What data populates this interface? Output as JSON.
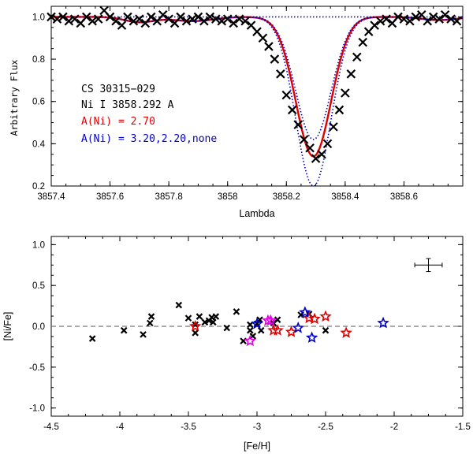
{
  "chart_data": [
    {
      "type": "line",
      "panel": "top",
      "xlabel": "Lambda",
      "ylabel": "Arbitrary Flux",
      "xlim": [
        3857.4,
        3858.8
      ],
      "ylim": [
        0.2,
        1.05
      ],
      "xticks": [
        3857.4,
        3857.6,
        3857.8,
        3858.0,
        3858.2,
        3858.4,
        3858.6
      ],
      "xtick_labels": [
        "3857.4",
        "3857.6",
        "3857.8",
        "3858",
        "3858.2",
        "3858.4",
        "3858.6"
      ],
      "yticks": [
        0.2,
        0.4,
        0.6,
        0.8,
        1.0
      ],
      "ytick_labels": [
        "0.2",
        "0.4",
        "0.6",
        "0.8",
        "1.0"
      ],
      "annotations": [
        {
          "text": "CS 30315−029",
          "color": "#000000"
        },
        {
          "text": "Ni I 3858.292 A",
          "color": "#000000"
        },
        {
          "text": "A(Ni) = 2.70",
          "color": "#e00000"
        },
        {
          "text": "A(Ni) = 3.20,2.20,none",
          "color": "#0000cc"
        }
      ],
      "line_model": {
        "center": 3858.292,
        "depth_best": 0.66,
        "sigma": 0.06
      },
      "series": [
        {
          "name": "A(Ni) = 2.70",
          "color": "#e00000",
          "style": "solid",
          "depth": 0.66
        },
        {
          "name": "A(Ni) = 3.20",
          "color": "#0000cc",
          "style": "dotted",
          "depth": 0.8
        },
        {
          "name": "A(Ni) = 2.20",
          "color": "#0000cc",
          "style": "dotted",
          "depth": 0.58
        },
        {
          "name": "none",
          "color": "#0000cc",
          "style": "dotted",
          "depth": 0.0
        }
      ],
      "observed": {
        "x": [
          3857.4,
          3857.42,
          3857.44,
          3857.46,
          3857.48,
          3857.5,
          3857.52,
          3857.54,
          3857.56,
          3857.58,
          3857.6,
          3857.62,
          3857.64,
          3857.66,
          3857.68,
          3857.7,
          3857.72,
          3857.74,
          3857.76,
          3857.78,
          3857.8,
          3857.82,
          3857.84,
          3857.86,
          3857.88,
          3857.9,
          3857.92,
          3857.94,
          3857.96,
          3857.98,
          3858.0,
          3858.02,
          3858.04,
          3858.06,
          3858.08,
          3858.1,
          3858.12,
          3858.14,
          3858.16,
          3858.18,
          3858.2,
          3858.22,
          3858.24,
          3858.26,
          3858.28,
          3858.3,
          3858.32,
          3858.34,
          3858.36,
          3858.38,
          3858.4,
          3858.42,
          3858.44,
          3858.46,
          3858.48,
          3858.5,
          3858.52,
          3858.54,
          3858.56,
          3858.58,
          3858.6,
          3858.62,
          3858.64,
          3858.66,
          3858.68,
          3858.7,
          3858.72,
          3858.74,
          3858.76,
          3858.78
        ],
        "y": [
          1.0,
          0.99,
          1.0,
          0.98,
          0.99,
          0.97,
          1.0,
          0.98,
          0.99,
          1.03,
          1.0,
          0.98,
          0.96,
          1.0,
          0.98,
          0.99,
          0.97,
          1.0,
          0.98,
          1.01,
          0.99,
          0.97,
          1.0,
          0.98,
          0.99,
          1.0,
          0.98,
          1.0,
          0.99,
          0.98,
          0.99,
          0.97,
          0.99,
          0.98,
          0.96,
          0.93,
          0.9,
          0.86,
          0.8,
          0.73,
          0.63,
          0.56,
          0.49,
          0.42,
          0.38,
          0.33,
          0.35,
          0.4,
          0.48,
          0.56,
          0.64,
          0.73,
          0.81,
          0.88,
          0.93,
          0.96,
          0.98,
          0.99,
          0.97,
          1.0,
          0.99,
          0.98,
          1.0,
          1.01,
          0.98,
          1.0,
          0.99,
          1.01,
          0.99,
          0.98
        ]
      }
    },
    {
      "type": "scatter",
      "panel": "bottom",
      "xlabel": "[Fe/H]",
      "ylabel": "[Ni/Fe]",
      "xlim": [
        -4.5,
        -1.5
      ],
      "ylim": [
        -1.1,
        1.1
      ],
      "xticks": [
        -4.5,
        -4,
        -3.5,
        -3,
        -2.5,
        -2,
        -1.5
      ],
      "xtick_labels": [
        "-4.5",
        "-4",
        "-3.5",
        "-3",
        "-2.5",
        "-2",
        "-1.5"
      ],
      "yticks": [
        -1.0,
        -0.5,
        0.0,
        0.5,
        1.0
      ],
      "ytick_labels": [
        "-1.0",
        "-0.5",
        "0.0",
        "0.5",
        "1.0"
      ],
      "reference_line": 0.0,
      "error_bar": {
        "x": -1.75,
        "y": 0.75,
        "xerr": 0.1,
        "yerr": 0.08
      },
      "series": [
        {
          "name": "literature",
          "marker": "x",
          "color": "#000000",
          "x": [
            -4.2,
            -3.97,
            -3.83,
            -3.78,
            -3.77,
            -3.57,
            -3.5,
            -3.45,
            -3.45,
            -3.42,
            -3.38,
            -3.35,
            -3.33,
            -3.32,
            -3.3,
            -3.22,
            -3.15,
            -3.1,
            -3.05,
            -3.05,
            -3.03,
            -3.0,
            -2.98,
            -2.97,
            -2.88,
            -2.85,
            -2.68,
            -2.62,
            -2.5
          ],
          "y": [
            -0.15,
            -0.05,
            -0.1,
            0.04,
            0.12,
            0.26,
            0.1,
            0.02,
            -0.08,
            0.12,
            0.05,
            0.07,
            0.11,
            0.05,
            0.12,
            -0.02,
            0.18,
            -0.18,
            -0.05,
            0.02,
            -0.12,
            0.03,
            0.08,
            -0.05,
            0.04,
            0.08,
            0.14,
            0.15,
            -0.05
          ]
        },
        {
          "name": "red stars",
          "marker": "star",
          "color": "#e00000",
          "x": [
            -3.45,
            -2.88,
            -2.85,
            -2.75,
            -2.62,
            -2.58,
            -2.5,
            -2.35
          ],
          "y": [
            0.0,
            -0.05,
            -0.05,
            -0.07,
            0.1,
            0.09,
            0.12,
            -0.08
          ]
        },
        {
          "name": "blue stars",
          "marker": "star",
          "color": "#0000cc",
          "x": [
            -3.0,
            -2.7,
            -2.65,
            -2.6,
            -2.08
          ],
          "y": [
            0.03,
            -0.02,
            0.17,
            -0.14,
            0.04
          ]
        },
        {
          "name": "magenta stars",
          "marker": "star",
          "color": "#e000e0",
          "x": [
            -3.05,
            -2.92,
            -2.9
          ],
          "y": [
            -0.18,
            0.07,
            0.07
          ]
        }
      ]
    }
  ]
}
